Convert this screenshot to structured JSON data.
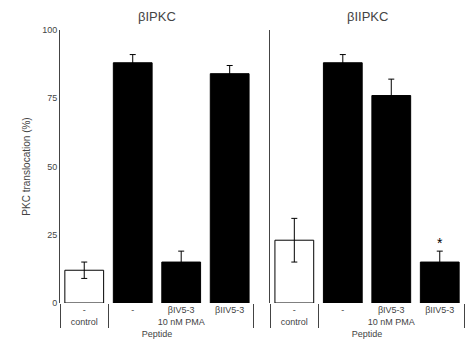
{
  "chart_data": [
    {
      "type": "bar",
      "title": "βIPKC",
      "ylabel": "PKC translocation (%)",
      "xlabel": "Peptide",
      "groups": [
        "control",
        "10 nM PMA",
        "10 nM PMA",
        "10 nM PMA"
      ],
      "categories": [
        "-",
        "-",
        "βIV5-3",
        "βIIV5-3"
      ],
      "values": [
        12,
        88,
        15,
        84
      ],
      "errors": [
        3,
        3,
        4,
        3
      ],
      "colors": [
        "white",
        "black",
        "black",
        "black"
      ],
      "ylim": [
        0,
        100
      ],
      "yticks": [
        0,
        25,
        50,
        75,
        100
      ],
      "grid": false
    },
    {
      "type": "bar",
      "title": "βIIPKC",
      "xlabel": "Peptide",
      "groups": [
        "control",
        "10 nM PMA",
        "10 nM PMA",
        "10 nM PMA"
      ],
      "categories": [
        "-",
        "-",
        "βIV5-3",
        "βIIV5-3"
      ],
      "values": [
        23,
        88,
        76,
        15
      ],
      "errors": [
        8,
        3,
        6,
        4
      ],
      "colors": [
        "white",
        "black",
        "black",
        "black"
      ],
      "ylim": [
        0,
        100
      ],
      "yticks": [
        0,
        25,
        50,
        75,
        100
      ],
      "grid": false,
      "tick_labels": "x",
      "annotations": [
        {
          "text": "*",
          "category": "βIIV5-3"
        }
      ]
    }
  ]
}
